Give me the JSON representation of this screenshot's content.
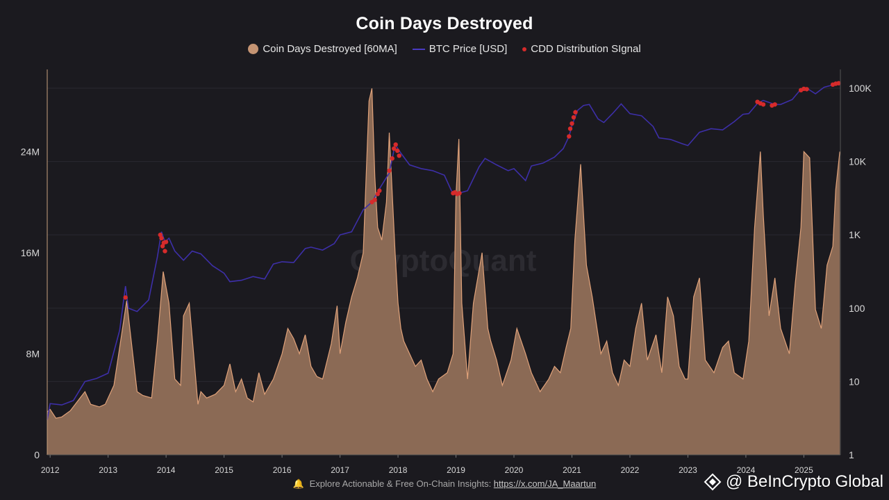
{
  "title": "Coin Days Destroyed",
  "legend": {
    "cdd_label": "Coin Days Destroyed [60MA]",
    "price_label": "BTC Price [USD]",
    "signal_label": "CDD Distribution SIgnal"
  },
  "colors": {
    "background": "#1b1a1f",
    "cdd_fill": "#8b6a55",
    "cdd_line": "#e0a27a",
    "price_line": "#3d2fa8",
    "signal": "#d62b2b",
    "grid": "#2a2930"
  },
  "watermark": "CryptoQuant",
  "footer": {
    "text": "Explore Actionable & Free On-Chain Insights: ",
    "link": "https://x.com/JA_Maartun"
  },
  "brand": "@ BeInCrypto Global",
  "chart_data": {
    "type": "area",
    "title": "Coin Days Destroyed",
    "x_ticks": [
      "2012",
      "2013",
      "2014",
      "2015",
      "2016",
      "2017",
      "2018",
      "2019",
      "2020",
      "2021",
      "2022",
      "2023",
      "2024",
      "2025"
    ],
    "x_range": [
      2011.95,
      2025.63
    ],
    "y_left": {
      "ticks": [
        "0",
        "8M",
        "16M",
        "24M"
      ],
      "tick_values": [
        0,
        8000000,
        16000000,
        24000000
      ],
      "range": [
        0,
        30500000
      ]
    },
    "y_right": {
      "scale": "log",
      "ticks": [
        "1",
        "10",
        "100",
        "1K",
        "10K",
        "100K"
      ],
      "tick_values": [
        1,
        10,
        100,
        1000,
        10000,
        100000
      ],
      "range": [
        1,
        180000
      ]
    },
    "series": [
      {
        "name": "Coin Days Destroyed [60MA]",
        "axis": "left",
        "x": [
          2011.95,
          2012.0,
          2012.1,
          2012.2,
          2012.35,
          2012.5,
          2012.6,
          2012.7,
          2012.85,
          2012.95,
          2013.1,
          2013.2,
          2013.32,
          2013.4,
          2013.5,
          2013.6,
          2013.75,
          2013.85,
          2013.95,
          2014.05,
          2014.15,
          2014.25,
          2014.3,
          2014.4,
          2014.55,
          2014.6,
          2014.7,
          2014.85,
          2015.0,
          2015.1,
          2015.2,
          2015.3,
          2015.4,
          2015.5,
          2015.6,
          2015.7,
          2015.85,
          2016.0,
          2016.1,
          2016.2,
          2016.3,
          2016.4,
          2016.5,
          2016.6,
          2016.7,
          2016.85,
          2016.95,
          2017.0,
          2017.1,
          2017.2,
          2017.3,
          2017.4,
          2017.5,
          2017.55,
          2017.6,
          2017.65,
          2017.72,
          2017.8,
          2017.85,
          2017.95,
          2018.0,
          2018.05,
          2018.1,
          2018.2,
          2018.3,
          2018.4,
          2018.5,
          2018.6,
          2018.7,
          2018.85,
          2018.95,
          2019.0,
          2019.05,
          2019.1,
          2019.15,
          2019.2,
          2019.3,
          2019.45,
          2019.55,
          2019.6,
          2019.7,
          2019.8,
          2019.95,
          2020.05,
          2020.2,
          2020.3,
          2020.45,
          2020.6,
          2020.7,
          2020.8,
          2020.9,
          2020.98,
          2021.05,
          2021.15,
          2021.25,
          2021.35,
          2021.5,
          2021.6,
          2021.7,
          2021.8,
          2021.9,
          2022.0,
          2022.1,
          2022.2,
          2022.3,
          2022.45,
          2022.55,
          2022.65,
          2022.75,
          2022.85,
          2022.95,
          2023.0,
          2023.1,
          2023.2,
          2023.3,
          2023.45,
          2023.6,
          2023.7,
          2023.8,
          2023.95,
          2024.05,
          2024.15,
          2024.25,
          2024.3,
          2024.4,
          2024.5,
          2024.6,
          2024.75,
          2024.85,
          2024.95,
          2025.0,
          2025.1,
          2025.2,
          2025.3,
          2025.4,
          2025.5,
          2025.55,
          2025.62
        ],
        "values": [
          3400000,
          3600000,
          2900000,
          3000000,
          3500000,
          4400000,
          5000000,
          4000000,
          3800000,
          4000000,
          5500000,
          8500000,
          12200000,
          9000000,
          5000000,
          4700000,
          4500000,
          9000000,
          14500000,
          12000000,
          6000000,
          5500000,
          11000000,
          12000000,
          4000000,
          5000000,
          4500000,
          4800000,
          5500000,
          7200000,
          5000000,
          6000000,
          4500000,
          4200000,
          6500000,
          4800000,
          6000000,
          8000000,
          10000000,
          9200000,
          8000000,
          9500000,
          7000000,
          6200000,
          6000000,
          8800000,
          11800000,
          8000000,
          10500000,
          12500000,
          14000000,
          16000000,
          28000000,
          29000000,
          22000000,
          18000000,
          17000000,
          20000000,
          25500000,
          16000000,
          12000000,
          10000000,
          9000000,
          8000000,
          7000000,
          7500000,
          6000000,
          5000000,
          6000000,
          6500000,
          8000000,
          20500000,
          25000000,
          12000000,
          9000000,
          6000000,
          12000000,
          16000000,
          10000000,
          9000000,
          7500000,
          5500000,
          7500000,
          10000000,
          8000000,
          6500000,
          5000000,
          6000000,
          7000000,
          6500000,
          8500000,
          10000000,
          17000000,
          23000000,
          15000000,
          12500000,
          8000000,
          9000000,
          6500000,
          5500000,
          7500000,
          7000000,
          10000000,
          12000000,
          7500000,
          9500000,
          6500000,
          12500000,
          11000000,
          7000000,
          6000000,
          6000000,
          12500000,
          14000000,
          7500000,
          6500000,
          8500000,
          9000000,
          6500000,
          6000000,
          9000000,
          18000000,
          24000000,
          19000000,
          11000000,
          14000000,
          10000000,
          8000000,
          13500000,
          18000000,
          24000000,
          23500000,
          11500000,
          10000000,
          15000000,
          16500000,
          21000000,
          24000000
        ]
      },
      {
        "name": "BTC Price [USD]",
        "axis": "right",
        "x": [
          2011.95,
          2012.0,
          2012.2,
          2012.4,
          2012.6,
          2012.8,
          2013.0,
          2013.2,
          2013.3,
          2013.35,
          2013.5,
          2013.7,
          2013.85,
          2013.92,
          2013.98,
          2014.05,
          2014.15,
          2014.3,
          2014.45,
          2014.6,
          2014.8,
          2015.0,
          2015.1,
          2015.3,
          2015.5,
          2015.7,
          2015.85,
          2016.0,
          2016.2,
          2016.4,
          2016.5,
          2016.7,
          2016.9,
          2017.0,
          2017.2,
          2017.4,
          2017.55,
          2017.7,
          2017.85,
          2017.95,
          2018.05,
          2018.2,
          2018.4,
          2018.6,
          2018.8,
          2018.92,
          2019.0,
          2019.2,
          2019.4,
          2019.5,
          2019.7,
          2019.9,
          2020.0,
          2020.2,
          2020.3,
          2020.5,
          2020.7,
          2020.85,
          2020.95,
          2021.0,
          2021.1,
          2021.2,
          2021.3,
          2021.45,
          2021.55,
          2021.7,
          2021.85,
          2022.0,
          2022.2,
          2022.4,
          2022.5,
          2022.7,
          2022.9,
          2023.0,
          2023.2,
          2023.4,
          2023.6,
          2023.8,
          2023.95,
          2024.05,
          2024.2,
          2024.3,
          2024.5,
          2024.6,
          2024.8,
          2024.95,
          2025.05,
          2025.2,
          2025.35,
          2025.45,
          2025.55,
          2025.62
        ],
        "values": [
          3,
          5,
          4.8,
          5.5,
          10,
          11,
          13,
          50,
          200,
          100,
          90,
          130,
          500,
          1100,
          800,
          900,
          600,
          450,
          600,
          550,
          380,
          300,
          230,
          240,
          270,
          250,
          400,
          430,
          420,
          650,
          680,
          620,
          760,
          1000,
          1100,
          2200,
          2800,
          4500,
          7000,
          17000,
          13000,
          9000,
          8000,
          7500,
          6500,
          4000,
          3600,
          4000,
          8500,
          11000,
          9000,
          7500,
          8000,
          5500,
          8700,
          9500,
          11500,
          15000,
          22000,
          31000,
          50000,
          58000,
          60000,
          38000,
          34000,
          45000,
          61000,
          45000,
          42000,
          30000,
          21000,
          20000,
          17500,
          16500,
          25000,
          28000,
          27000,
          35000,
          44000,
          45000,
          62000,
          68000,
          60000,
          60000,
          70000,
          97000,
          100000,
          84000,
          103000,
          108000,
          115000,
          118000
        ]
      },
      {
        "name": "CDD Distribution SIgnal",
        "axis": "right",
        "points": [
          [
            2013.3,
            140
          ],
          [
            2013.9,
            1000
          ],
          [
            2013.92,
            900
          ],
          [
            2013.94,
            700
          ],
          [
            2013.96,
            780
          ],
          [
            2013.98,
            600
          ],
          [
            2014.0,
            800
          ],
          [
            2017.55,
            2800
          ],
          [
            2017.6,
            3000
          ],
          [
            2017.65,
            3600
          ],
          [
            2017.68,
            4000
          ],
          [
            2017.85,
            7500
          ],
          [
            2017.9,
            11000
          ],
          [
            2017.93,
            15000
          ],
          [
            2017.96,
            17000
          ],
          [
            2017.99,
            14000
          ],
          [
            2018.02,
            12000
          ],
          [
            2018.95,
            3700
          ],
          [
            2018.98,
            3800
          ],
          [
            2019.02,
            3600
          ],
          [
            2019.06,
            3700
          ],
          [
            2020.95,
            22000
          ],
          [
            2020.97,
            28000
          ],
          [
            2021.0,
            33000
          ],
          [
            2021.03,
            40000
          ],
          [
            2021.06,
            47000
          ],
          [
            2024.2,
            65000
          ],
          [
            2024.25,
            62000
          ],
          [
            2024.3,
            60000
          ],
          [
            2024.45,
            58000
          ],
          [
            2024.5,
            60000
          ],
          [
            2024.95,
            94000
          ],
          [
            2025.0,
            98000
          ],
          [
            2025.05,
            97000
          ],
          [
            2025.5,
            112000
          ],
          [
            2025.55,
            115000
          ],
          [
            2025.6,
            117000
          ]
        ]
      }
    ]
  }
}
